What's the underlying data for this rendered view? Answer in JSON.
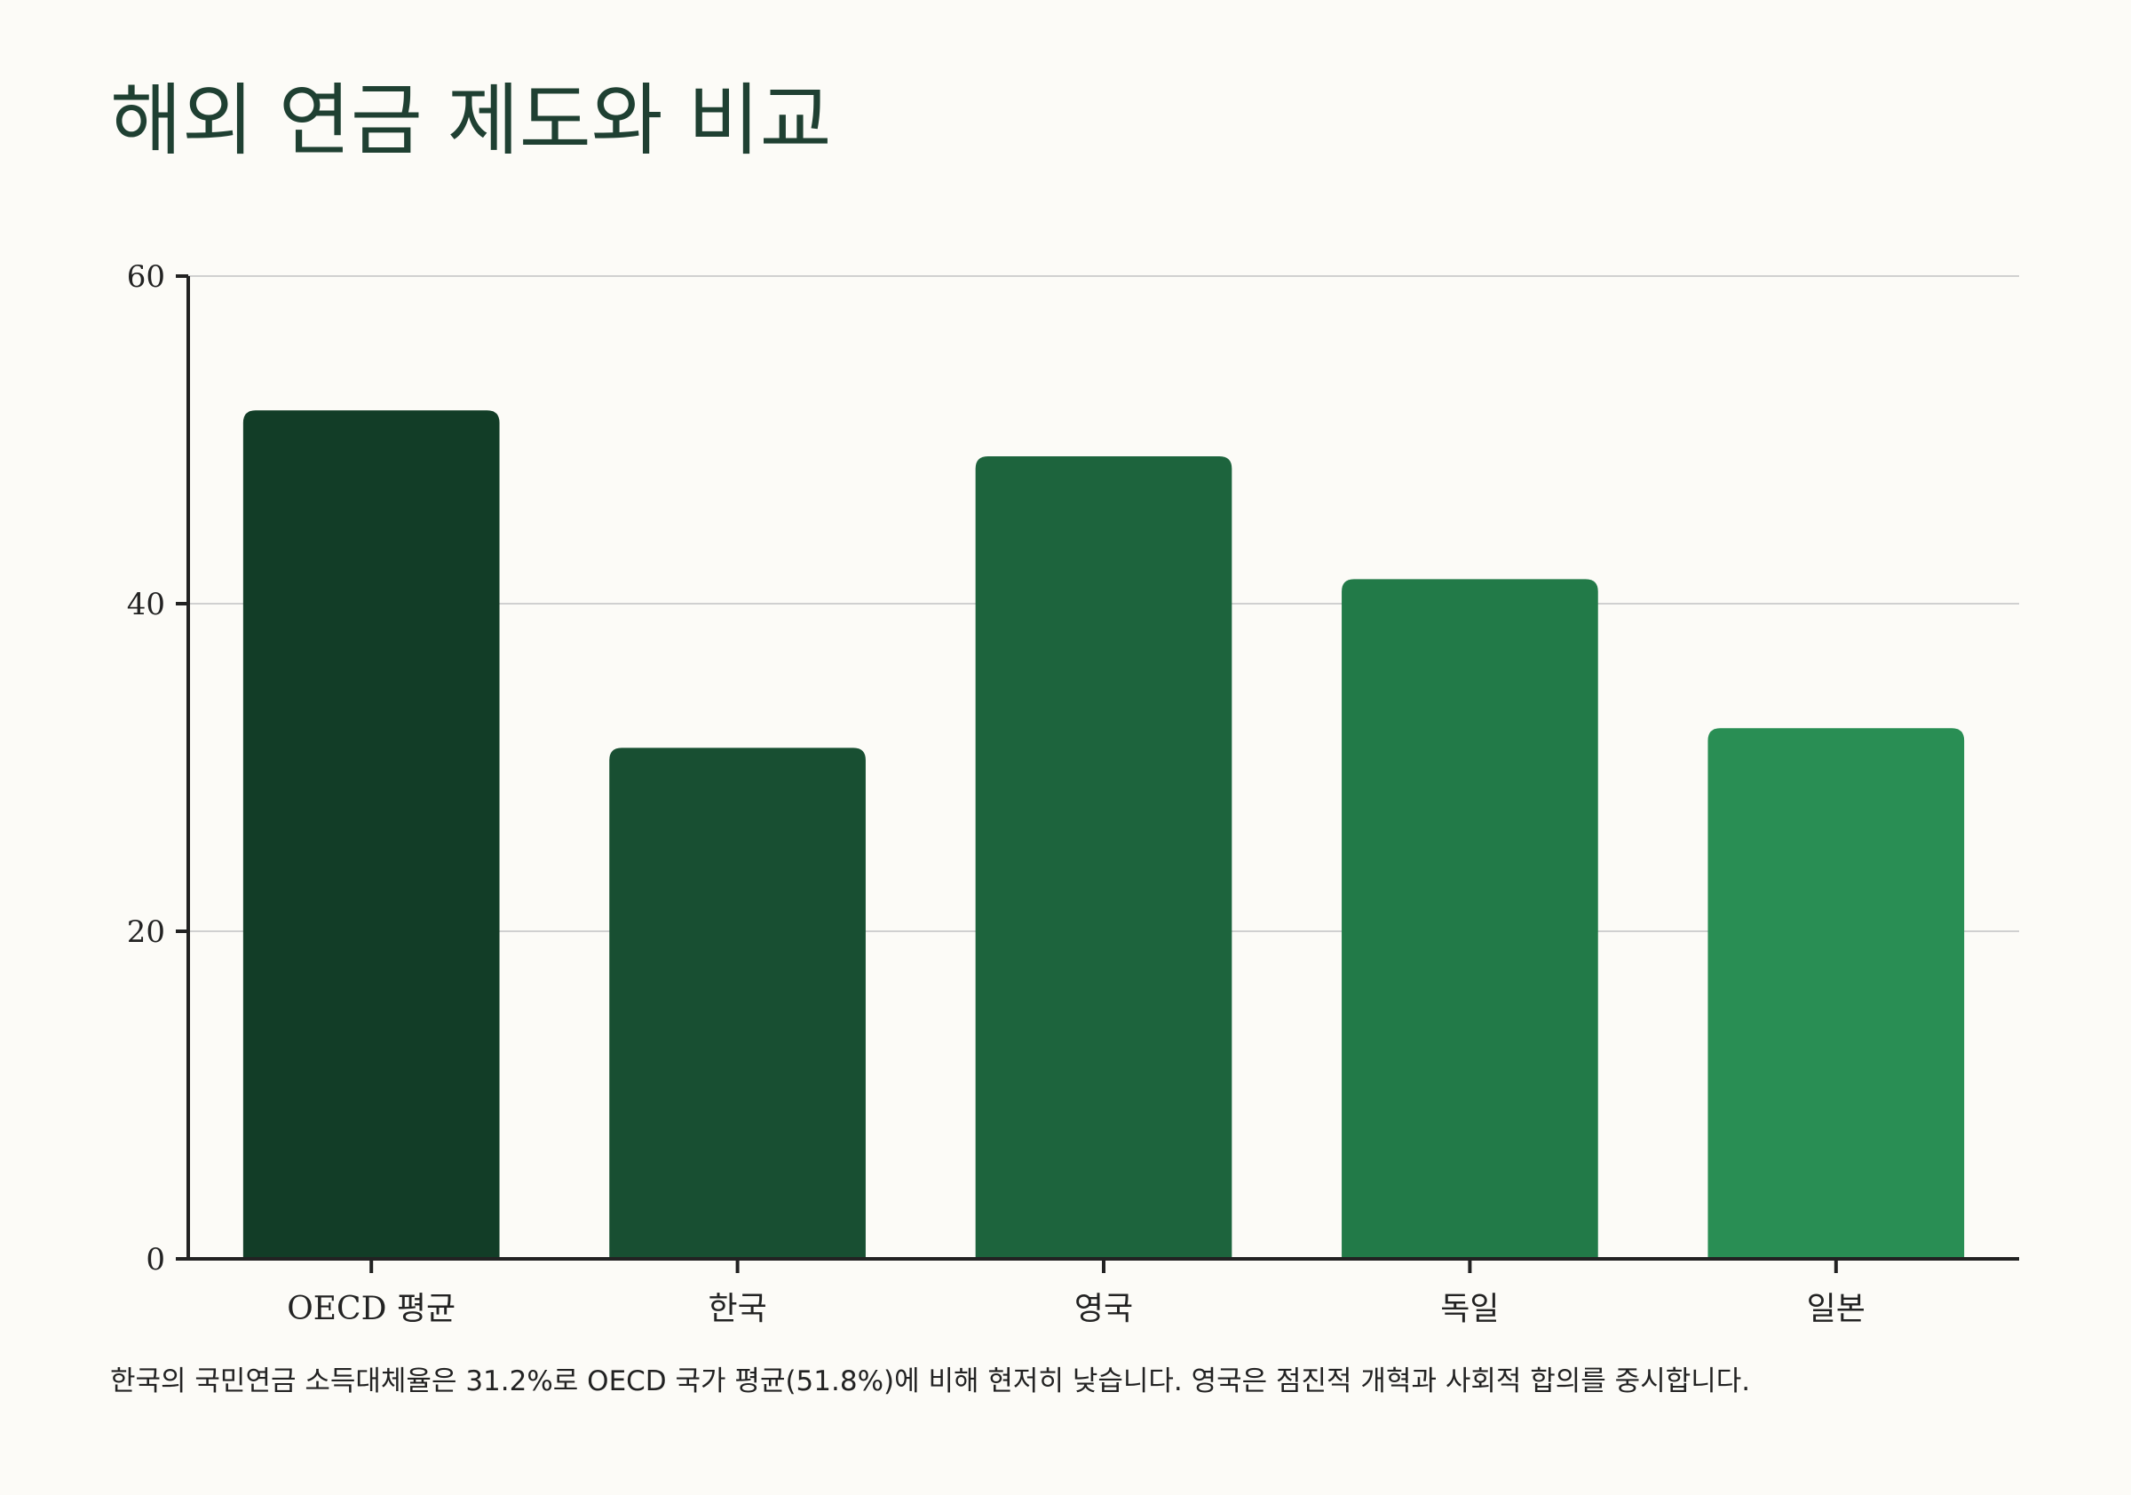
{
  "title": "해외 연금 제도와 비교",
  "caption": "한국의 국민연금 소득대체율은 31.2%로 OECD 국가 평균(51.8%)에 비해 현저히 낮습니다. 영국은 점진적 개혁과 사회적 합의를 중시합니다.",
  "chart_data": {
    "type": "bar",
    "title": "",
    "xlabel": "",
    "ylabel": "",
    "categories": [
      "OECD 평균",
      "한국",
      "영국",
      "독일",
      "일본"
    ],
    "values": [
      51.8,
      31.2,
      49.0,
      41.5,
      32.4
    ],
    "ylim": [
      0,
      60
    ],
    "yticks": [
      0,
      20,
      40,
      60
    ],
    "grid": true,
    "legend": "none",
    "colors": [
      "#123d27",
      "#184f32",
      "#1d643d",
      "#227a48",
      "#298e54"
    ]
  },
  "colors": {
    "background": "#fcfbf7",
    "title": "#1f4032",
    "axis": "#222222",
    "grid": "#d0d0d0"
  }
}
